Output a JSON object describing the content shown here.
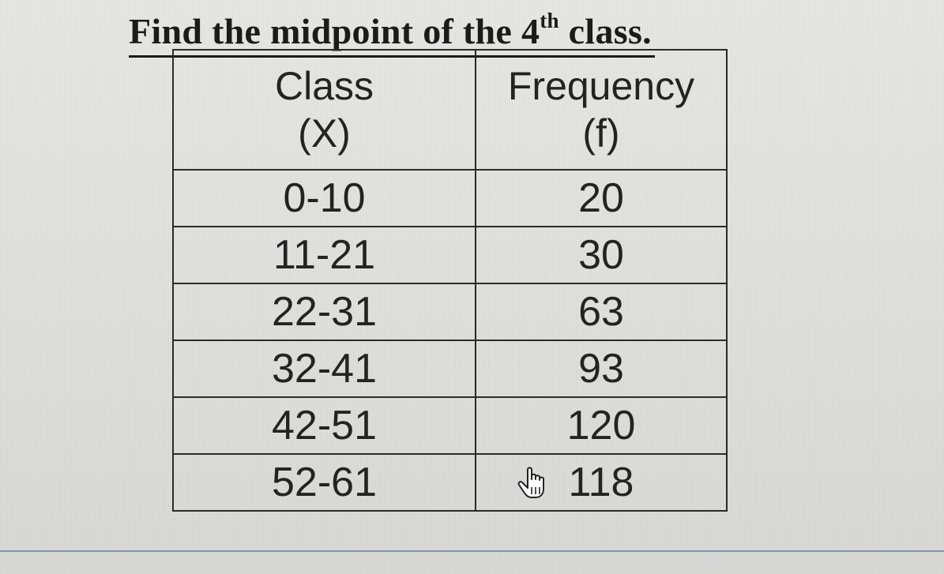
{
  "question": {
    "prefix": "Find the midpoint of the 4",
    "superscript": "th",
    "suffix": " class."
  },
  "table": {
    "headers": {
      "class_line1": "Class",
      "class_line2": "(X)",
      "freq_line1": "Frequency",
      "freq_line2": "(f)"
    },
    "rows": [
      {
        "class": "0-10",
        "frequency": "20"
      },
      {
        "class": "11-21",
        "frequency": "30"
      },
      {
        "class": "22-31",
        "frequency": "63"
      },
      {
        "class": "32-41",
        "frequency": "93"
      },
      {
        "class": "42-51",
        "frequency": "120"
      },
      {
        "class": "52-61",
        "frequency": "118"
      }
    ]
  },
  "cursor": {
    "icon": "hand-pointer-icon"
  }
}
